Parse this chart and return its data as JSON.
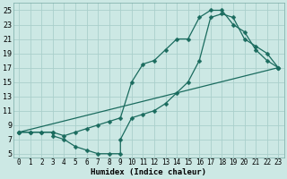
{
  "xlabel": "Humidex (Indice chaleur)",
  "bg_color": "#cce8e4",
  "grid_color": "#aacfcb",
  "line_color": "#1a6b5e",
  "xlim": [
    -0.5,
    23.5
  ],
  "ylim": [
    4.5,
    26.0
  ],
  "xticks": [
    0,
    1,
    2,
    3,
    4,
    5,
    6,
    7,
    8,
    9,
    10,
    11,
    12,
    13,
    14,
    15,
    16,
    17,
    18,
    19,
    20,
    21,
    22,
    23
  ],
  "yticks": [
    5,
    7,
    9,
    11,
    13,
    15,
    17,
    19,
    21,
    23,
    25
  ],
  "curve1_x": [
    0,
    1,
    2,
    3,
    4,
    5,
    6,
    7,
    8,
    9,
    10,
    11,
    12,
    13,
    14,
    15,
    16,
    17,
    18,
    19,
    20,
    21,
    22,
    23
  ],
  "curve1_y": [
    8,
    8,
    8,
    8,
    7.5,
    8,
    8.5,
    9,
    9.5,
    10,
    15,
    17.5,
    18,
    19.5,
    21,
    21,
    24,
    25,
    25,
    23,
    22,
    19.5,
    18,
    17
  ],
  "curve2_x": [
    0,
    1,
    2,
    3,
    3,
    4,
    5,
    6,
    7,
    8,
    9,
    9,
    10,
    11,
    12,
    13,
    14,
    15,
    16,
    17,
    18,
    19,
    20,
    21,
    22,
    23
  ],
  "curve2_y": [
    8,
    8,
    8,
    8,
    7.5,
    7,
    6,
    5.5,
    5,
    5,
    5,
    7,
    10,
    10.5,
    11,
    12,
    13.5,
    15,
    18,
    24,
    24.5,
    24,
    21,
    20,
    19,
    17
  ],
  "curve3_x": [
    0,
    23
  ],
  "curve3_y": [
    8,
    17
  ],
  "marker_size": 2.5,
  "line_width": 0.9,
  "tick_fontsize": 5.5,
  "xlabel_fontsize": 6.5
}
